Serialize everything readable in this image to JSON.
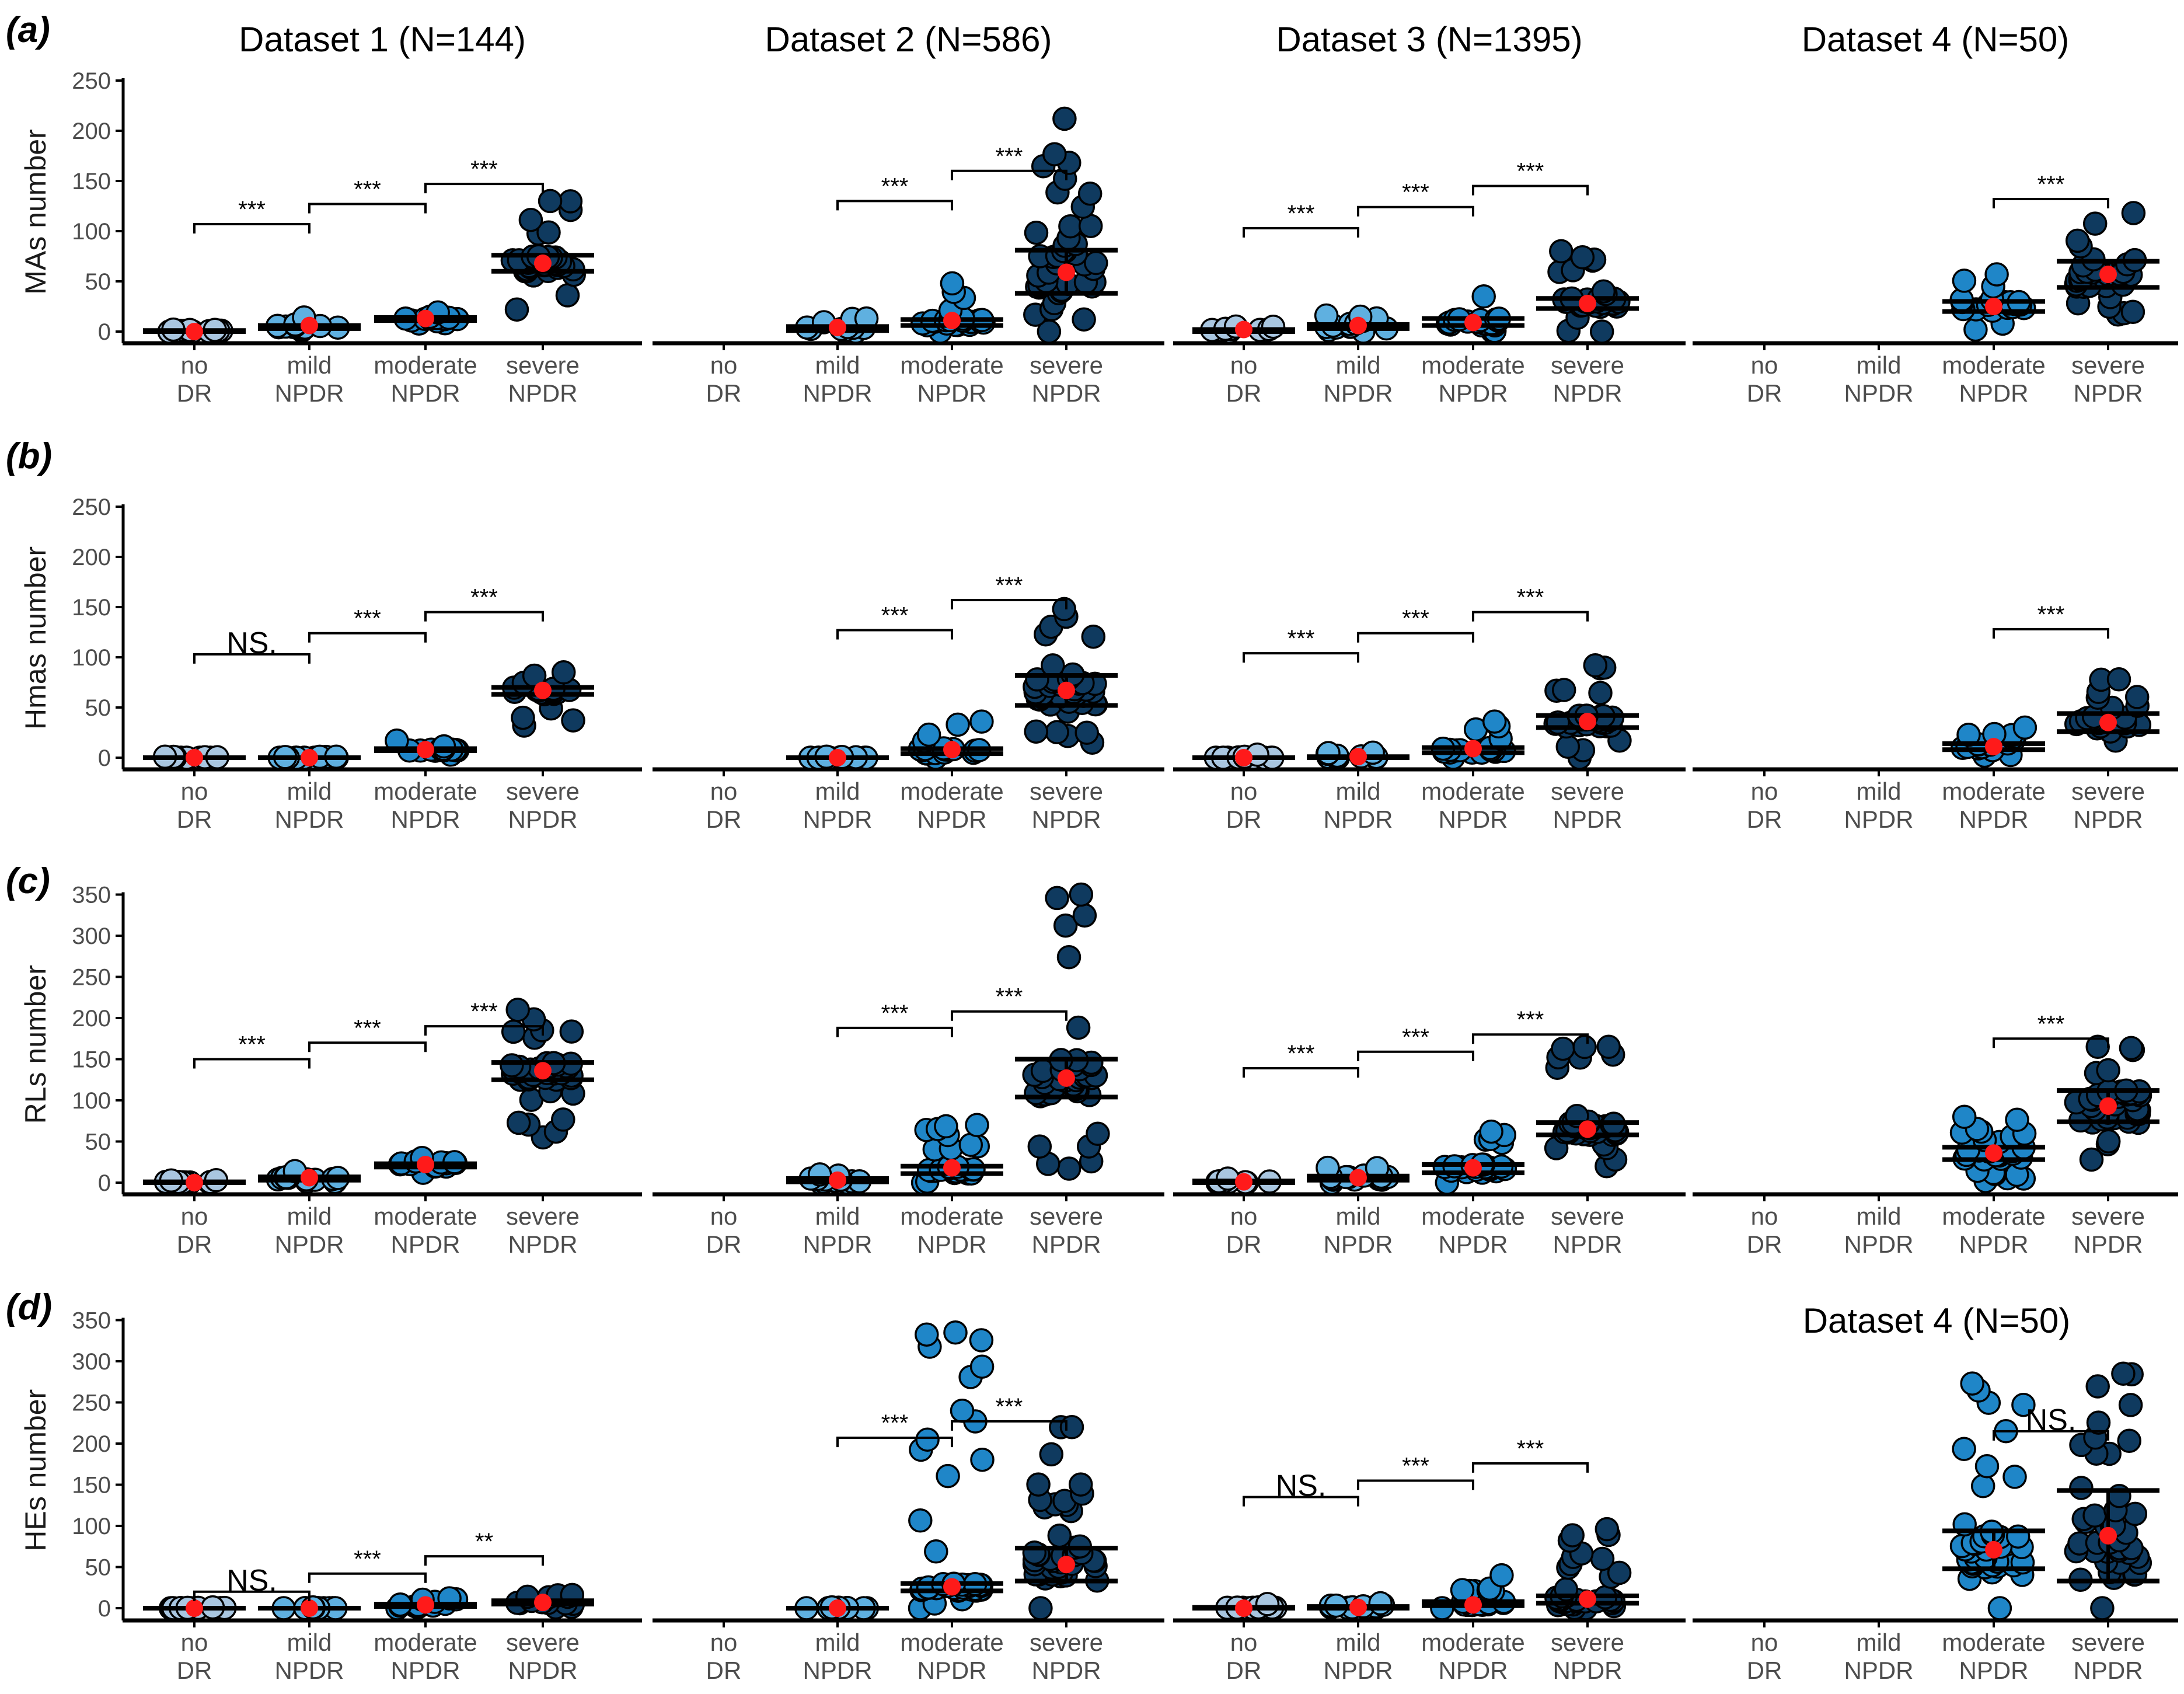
{
  "figure": {
    "panel_labels": [
      "(a)",
      "(b)",
      "(c)",
      "(d)"
    ],
    "dataset_titles": [
      "Dataset 1 (N=144)",
      "Dataset 2 (N=586)",
      "Dataset 3 (N=1395)",
      "Dataset 4 (N=50)"
    ],
    "repeated_title": "Dataset 4 (N=50)",
    "category_lines": [
      [
        "no",
        "DR"
      ],
      [
        "mild",
        "NPDR"
      ],
      [
        "moderate",
        "NPDR"
      ],
      [
        "severe",
        "NPDR"
      ]
    ],
    "colors": {
      "no_DR": "#a9c6e0",
      "mild_NPDR": "#5fb0e0",
      "moderate_NPDR": "#1f86c8",
      "severe_NPDR": "#0f3a5f",
      "mean_point": "#ff1a1a",
      "axis": "#000000"
    }
  },
  "chart_data": [
    {
      "type": "scatter",
      "subtype": "strip (jitter) plot with median / IQR bars",
      "panel": "(a)",
      "ylabel": "MAs number",
      "ylim": [
        0,
        250
      ],
      "yticks": [
        0,
        50,
        100,
        150,
        200,
        250
      ],
      "categories": [
        "no DR",
        "mild NPDR",
        "moderate NPDR",
        "severe NPDR"
      ],
      "datasets": [
        {
          "name": "Dataset 1 (N=144)",
          "groups": [
            {
              "category": "no DR",
              "min": 0,
              "max": 2,
              "q1": 0,
              "q3": 1,
              "mean": 0
            },
            {
              "category": "mild NPDR",
              "min": 1,
              "max": 14,
              "q1": 3,
              "q3": 6,
              "mean": 6
            },
            {
              "category": "moderate NPDR",
              "min": 8,
              "max": 19,
              "q1": 11,
              "q3": 14,
              "mean": 13
            },
            {
              "category": "severe NPDR",
              "min": 22,
              "max": 130,
              "q1": 60,
              "q3": 76,
              "mean": 68
            }
          ],
          "comparisons": [
            {
              "from": 0,
              "to": 1,
              "y": 107,
              "label": "***"
            },
            {
              "from": 1,
              "to": 2,
              "y": 127,
              "label": "***"
            },
            {
              "from": 2,
              "to": 3,
              "y": 147,
              "label": "***"
            }
          ]
        },
        {
          "name": "Dataset 2 (N=586)",
          "groups": [
            {
              "category": "mild NPDR",
              "min": 0,
              "max": 13,
              "q1": 1,
              "q3": 5,
              "mean": 4
            },
            {
              "category": "moderate NPDR",
              "min": 0,
              "max": 48,
              "q1": 6,
              "q3": 12,
              "mean": 11
            },
            {
              "category": "severe NPDR",
              "min": 0,
              "max": 212,
              "q1": 38,
              "q3": 81,
              "mean": 59
            }
          ],
          "comparisons": [
            {
              "from": 1,
              "to": 2,
              "y": 130,
              "label": "***"
            },
            {
              "from": 2,
              "to": 3,
              "y": 160,
              "label": "***"
            }
          ]
        },
        {
          "name": "Dataset 3 (N=1395)",
          "groups": [
            {
              "category": "no DR",
              "min": 0,
              "max": 5,
              "q1": 0,
              "q3": 2,
              "mean": 2
            },
            {
              "category": "mild NPDR",
              "min": 0,
              "max": 16,
              "q1": 3,
              "q3": 7,
              "mean": 6
            },
            {
              "category": "moderate NPDR",
              "min": 0,
              "max": 35,
              "q1": 6,
              "q3": 13,
              "mean": 9
            },
            {
              "category": "severe NPDR",
              "min": 0,
              "max": 80,
              "q1": 23,
              "q3": 33,
              "mean": 28
            }
          ],
          "comparisons": [
            {
              "from": 0,
              "to": 1,
              "y": 103,
              "label": "***"
            },
            {
              "from": 1,
              "to": 2,
              "y": 124,
              "label": "***"
            },
            {
              "from": 2,
              "to": 3,
              "y": 145,
              "label": "***"
            }
          ]
        },
        {
          "name": "Dataset 4 (N=50)",
          "groups": [
            {
              "category": "moderate NPDR",
              "min": 2,
              "max": 57,
              "q1": 20,
              "q3": 30,
              "mean": 25
            },
            {
              "category": "severe NPDR",
              "min": 17,
              "max": 118,
              "q1": 44,
              "q3": 70,
              "mean": 57
            }
          ],
          "comparisons": [
            {
              "from": 2,
              "to": 3,
              "y": 132,
              "label": "***"
            }
          ]
        }
      ]
    },
    {
      "type": "scatter",
      "subtype": "strip (jitter) plot with median / IQR bars",
      "panel": "(b)",
      "ylabel": "Hmas number",
      "ylim": [
        0,
        250
      ],
      "yticks": [
        0,
        50,
        100,
        150,
        200,
        250
      ],
      "categories": [
        "no DR",
        "mild NPDR",
        "moderate NPDR",
        "severe NPDR"
      ],
      "datasets": [
        {
          "name": "Dataset 1 (N=144)",
          "groups": [
            {
              "category": "no DR",
              "min": 0,
              "max": 1,
              "q1": 0,
              "q3": 0,
              "mean": 0
            },
            {
              "category": "mild NPDR",
              "min": 0,
              "max": 1,
              "q1": 0,
              "q3": 0,
              "mean": 0
            },
            {
              "category": "moderate NPDR",
              "min": 3,
              "max": 17,
              "q1": 7,
              "q3": 9,
              "mean": 8
            },
            {
              "category": "severe NPDR",
              "min": 32,
              "max": 85,
              "q1": 63,
              "q3": 70,
              "mean": 67
            }
          ],
          "comparisons": [
            {
              "from": 0,
              "to": 1,
              "y": 103,
              "label": "NS."
            },
            {
              "from": 1,
              "to": 2,
              "y": 124,
              "label": "***"
            },
            {
              "from": 2,
              "to": 3,
              "y": 145,
              "label": "***"
            }
          ]
        },
        {
          "name": "Dataset 2 (N=586)",
          "groups": [
            {
              "category": "mild NPDR",
              "min": 0,
              "max": 1,
              "q1": 0,
              "q3": 0,
              "mean": 0
            },
            {
              "category": "moderate NPDR",
              "min": 0,
              "max": 36,
              "q1": 4,
              "q3": 9,
              "mean": 8
            },
            {
              "category": "severe NPDR",
              "min": 15,
              "max": 148,
              "q1": 52,
              "q3": 82,
              "mean": 67
            }
          ],
          "comparisons": [
            {
              "from": 1,
              "to": 2,
              "y": 127,
              "label": "***"
            },
            {
              "from": 2,
              "to": 3,
              "y": 157,
              "label": "***"
            }
          ]
        },
        {
          "name": "Dataset 3 (N=1395)",
          "groups": [
            {
              "category": "no DR",
              "min": 0,
              "max": 3,
              "q1": 0,
              "q3": 0,
              "mean": 0
            },
            {
              "category": "mild NPDR",
              "min": 0,
              "max": 5,
              "q1": 0,
              "q3": 1,
              "mean": 1
            },
            {
              "category": "moderate NPDR",
              "min": 0,
              "max": 36,
              "q1": 5,
              "q3": 10,
              "mean": 9
            },
            {
              "category": "severe NPDR",
              "min": 0,
              "max": 92,
              "q1": 30,
              "q3": 42,
              "mean": 36
            }
          ],
          "comparisons": [
            {
              "from": 0,
              "to": 1,
              "y": 104,
              "label": "***"
            },
            {
              "from": 1,
              "to": 2,
              "y": 124,
              "label": "***"
            },
            {
              "from": 2,
              "to": 3,
              "y": 145,
              "label": "***"
            }
          ]
        },
        {
          "name": "Dataset 4 (N=50)",
          "groups": [
            {
              "category": "moderate NPDR",
              "min": 2,
              "max": 30,
              "q1": 8,
              "q3": 14,
              "mean": 11
            },
            {
              "category": "severe NPDR",
              "min": 17,
              "max": 78,
              "q1": 26,
              "q3": 44,
              "mean": 35
            }
          ],
          "comparisons": [
            {
              "from": 2,
              "to": 3,
              "y": 128,
              "label": "***"
            }
          ]
        }
      ]
    },
    {
      "type": "scatter",
      "subtype": "strip (jitter) plot with median / IQR bars",
      "panel": "(c)",
      "ylabel": "RLs number",
      "ylim": [
        0,
        350
      ],
      "yticks": [
        0,
        50,
        100,
        150,
        200,
        250,
        300,
        350
      ],
      "categories": [
        "no DR",
        "mild NPDR",
        "moderate NPDR",
        "severe NPDR"
      ],
      "datasets": [
        {
          "name": "Dataset 1 (N=144)",
          "groups": [
            {
              "category": "no DR",
              "min": 0,
              "max": 3,
              "q1": 0,
              "q3": 1,
              "mean": 0
            },
            {
              "category": "mild NPDR",
              "min": 1,
              "max": 14,
              "q1": 3,
              "q3": 7,
              "mean": 6
            },
            {
              "category": "moderate NPDR",
              "min": 12,
              "max": 30,
              "q1": 19,
              "q3": 23,
              "mean": 22
            },
            {
              "category": "severe NPDR",
              "min": 55,
              "max": 210,
              "q1": 125,
              "q3": 146,
              "mean": 136
            }
          ],
          "comparisons": [
            {
              "from": 0,
              "to": 1,
              "y": 150,
              "label": "***"
            },
            {
              "from": 1,
              "to": 2,
              "y": 170,
              "label": "***"
            },
            {
              "from": 2,
              "to": 3,
              "y": 190,
              "label": "***"
            }
          ]
        },
        {
          "name": "Dataset 2 (N=586)",
          "groups": [
            {
              "category": "mild NPDR",
              "min": 0,
              "max": 10,
              "q1": 1,
              "q3": 5,
              "mean": 3
            },
            {
              "category": "moderate NPDR",
              "min": 0,
              "max": 70,
              "q1": 11,
              "q3": 20,
              "mean": 18
            },
            {
              "category": "severe NPDR",
              "min": 17,
              "max": 350,
              "q1": 104,
              "q3": 150,
              "mean": 127
            }
          ],
          "comparisons": [
            {
              "from": 1,
              "to": 2,
              "y": 188,
              "label": "***"
            },
            {
              "from": 2,
              "to": 3,
              "y": 208,
              "label": "***"
            }
          ]
        },
        {
          "name": "Dataset 3 (N=1395)",
          "groups": [
            {
              "category": "no DR",
              "min": 0,
              "max": 5,
              "q1": 0,
              "q3": 2,
              "mean": 1
            },
            {
              "category": "mild NPDR",
              "min": 0,
              "max": 18,
              "q1": 3,
              "q3": 8,
              "mean": 6
            },
            {
              "category": "moderate NPDR",
              "min": 0,
              "max": 62,
              "q1": 12,
              "q3": 22,
              "mean": 18
            },
            {
              "category": "severe NPDR",
              "min": 20,
              "max": 165,
              "q1": 58,
              "q3": 73,
              "mean": 65
            }
          ],
          "comparisons": [
            {
              "from": 0,
              "to": 1,
              "y": 139,
              "label": "***"
            },
            {
              "from": 1,
              "to": 2,
              "y": 159,
              "label": "***"
            },
            {
              "from": 2,
              "to": 3,
              "y": 180,
              "label": "***"
            }
          ]
        },
        {
          "name": "Dataset 4 (N=50)",
          "groups": [
            {
              "category": "moderate NPDR",
              "min": 2,
              "max": 80,
              "q1": 28,
              "q3": 43,
              "mean": 36
            },
            {
              "category": "severe NPDR",
              "min": 28,
              "max": 165,
              "q1": 74,
              "q3": 112,
              "mean": 93
            }
          ],
          "comparisons": [
            {
              "from": 2,
              "to": 3,
              "y": 175,
              "label": "***"
            }
          ]
        }
      ]
    },
    {
      "type": "scatter",
      "subtype": "strip (jitter) plot with median / IQR bars",
      "panel": "(d)",
      "ylabel": "HEs number",
      "ylim": [
        0,
        350
      ],
      "yticks": [
        0,
        50,
        100,
        150,
        200,
        250,
        300,
        350
      ],
      "categories": [
        "no DR",
        "mild NPDR",
        "moderate NPDR",
        "severe NPDR"
      ],
      "datasets": [
        {
          "name": "Dataset 1 (N=144)",
          "groups": [
            {
              "category": "no DR",
              "min": 0,
              "max": 1,
              "q1": 0,
              "q3": 0,
              "mean": 0
            },
            {
              "category": "mild NPDR",
              "min": 0,
              "max": 1,
              "q1": 0,
              "q3": 0,
              "mean": 0
            },
            {
              "category": "moderate NPDR",
              "min": 0,
              "max": 12,
              "q1": 2,
              "q3": 5,
              "mean": 4
            },
            {
              "category": "severe NPDR",
              "min": 1,
              "max": 16,
              "q1": 5,
              "q3": 9,
              "mean": 7
            }
          ],
          "comparisons": [
            {
              "from": 0,
              "to": 1,
              "y": 20,
              "label": "NS."
            },
            {
              "from": 1,
              "to": 2,
              "y": 42,
              "label": "***"
            },
            {
              "from": 2,
              "to": 3,
              "y": 63,
              "label": "**"
            }
          ]
        },
        {
          "name": "Dataset 2 (N=586)",
          "groups": [
            {
              "category": "mild NPDR",
              "min": 0,
              "max": 1,
              "q1": 0,
              "q3": 0,
              "mean": 0
            },
            {
              "category": "moderate NPDR",
              "min": 0,
              "max": 335,
              "q1": 21,
              "q3": 30,
              "mean": 26
            },
            {
              "category": "severe NPDR",
              "min": 0,
              "max": 220,
              "q1": 33,
              "q3": 73,
              "mean": 53
            }
          ],
          "comparisons": [
            {
              "from": 1,
              "to": 2,
              "y": 207,
              "label": "***"
            },
            {
              "from": 2,
              "to": 3,
              "y": 227,
              "label": "***"
            }
          ]
        },
        {
          "name": "Dataset 3 (N=1395)",
          "groups": [
            {
              "category": "no DR",
              "min": 0,
              "max": 5,
              "q1": 0,
              "q3": 1,
              "mean": 0
            },
            {
              "category": "mild NPDR",
              "min": 0,
              "max": 6,
              "q1": 0,
              "q3": 2,
              "mean": 1
            },
            {
              "category": "moderate NPDR",
              "min": 0,
              "max": 40,
              "q1": 3,
              "q3": 8,
              "mean": 4
            },
            {
              "category": "severe NPDR",
              "min": 0,
              "max": 96,
              "q1": 6,
              "q3": 15,
              "mean": 11
            }
          ],
          "comparisons": [
            {
              "from": 0,
              "to": 1,
              "y": 135,
              "label": "NS."
            },
            {
              "from": 1,
              "to": 2,
              "y": 155,
              "label": "***"
            },
            {
              "from": 2,
              "to": 3,
              "y": 176,
              "label": "***"
            }
          ]
        },
        {
          "name": "Dataset 4 (N=50)",
          "groups": [
            {
              "category": "moderate NPDR",
              "min": 0,
              "max": 273,
              "q1": 48,
              "q3": 94,
              "mean": 71
            },
            {
              "category": "severe NPDR",
              "min": 0,
              "max": 285,
              "q1": 33,
              "q3": 143,
              "mean": 88
            }
          ],
          "comparisons": [
            {
              "from": 2,
              "to": 3,
              "y": 215,
              "label": "NS."
            }
          ]
        }
      ]
    }
  ]
}
